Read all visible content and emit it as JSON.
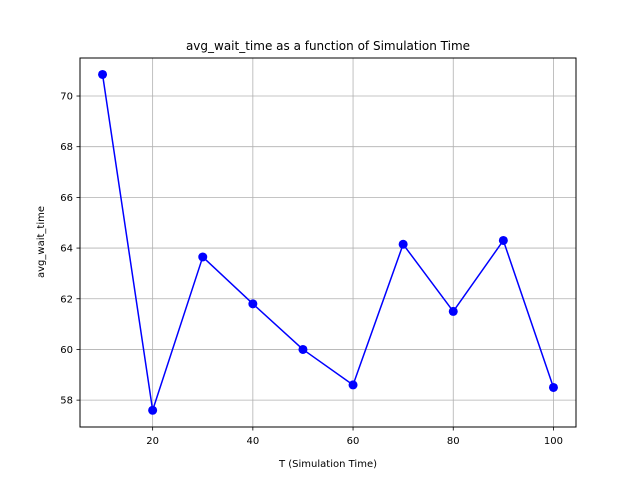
{
  "chart_data": {
    "type": "line",
    "title": "avg_wait_time as a function of Simulation Time",
    "xlabel": "T (Simulation Time)",
    "ylabel": "avg_wait_time",
    "x": [
      10,
      20,
      30,
      40,
      50,
      60,
      70,
      80,
      90,
      100
    ],
    "series": [
      {
        "values": [
          70.85,
          57.6,
          63.65,
          61.8,
          60.0,
          58.6,
          64.15,
          61.5,
          64.3,
          58.5
        ],
        "color": "#0000ff",
        "marker": "circle"
      }
    ],
    "xlim": [
      5.5,
      104.5
    ],
    "ylim": [
      56.94,
      71.5
    ],
    "xticks": [
      20,
      40,
      60,
      80,
      100
    ],
    "xtick_labels": [
      "20",
      "40",
      "60",
      "80",
      "100"
    ],
    "yticks": [
      58,
      60,
      62,
      64,
      66,
      68,
      70
    ],
    "ytick_labels": [
      "58",
      "60",
      "62",
      "64",
      "66",
      "68",
      "70"
    ],
    "grid": true
  }
}
